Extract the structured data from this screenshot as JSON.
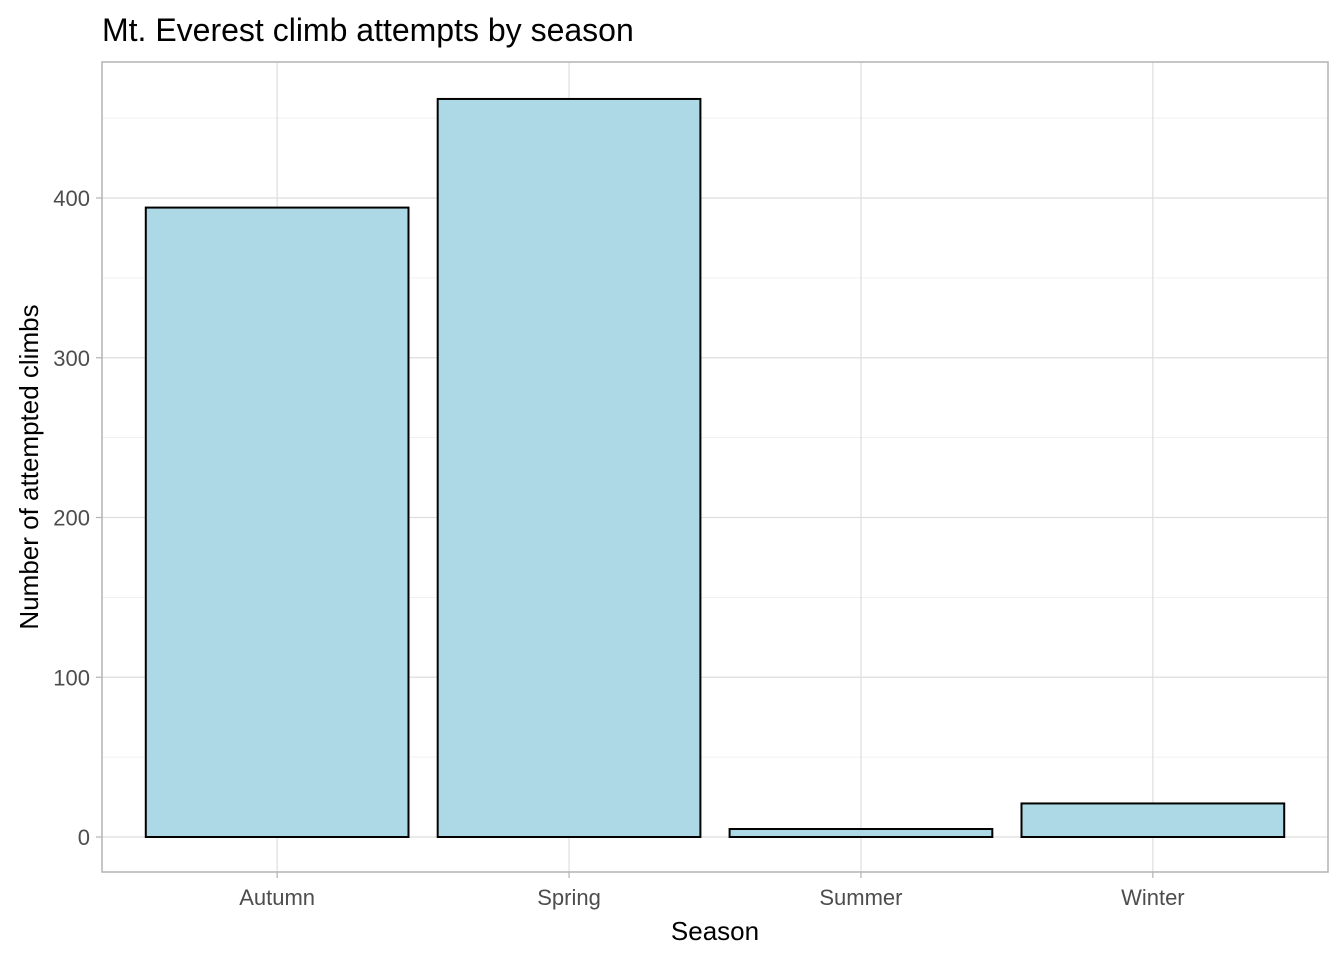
{
  "chart_data": {
    "type": "bar",
    "title": "Mt. Everest climb attempts by season",
    "xlabel": "Season",
    "ylabel": "Number of attempted climbs",
    "categories": [
      "Autumn",
      "Spring",
      "Summer",
      "Winter"
    ],
    "values": [
      394,
      462,
      5,
      21
    ],
    "ylim": [
      0,
      480
    ],
    "yticks": [
      0,
      100,
      200,
      300,
      400
    ],
    "grid": true,
    "bar_fill": "#add8e6",
    "bar_stroke": "#000000"
  }
}
